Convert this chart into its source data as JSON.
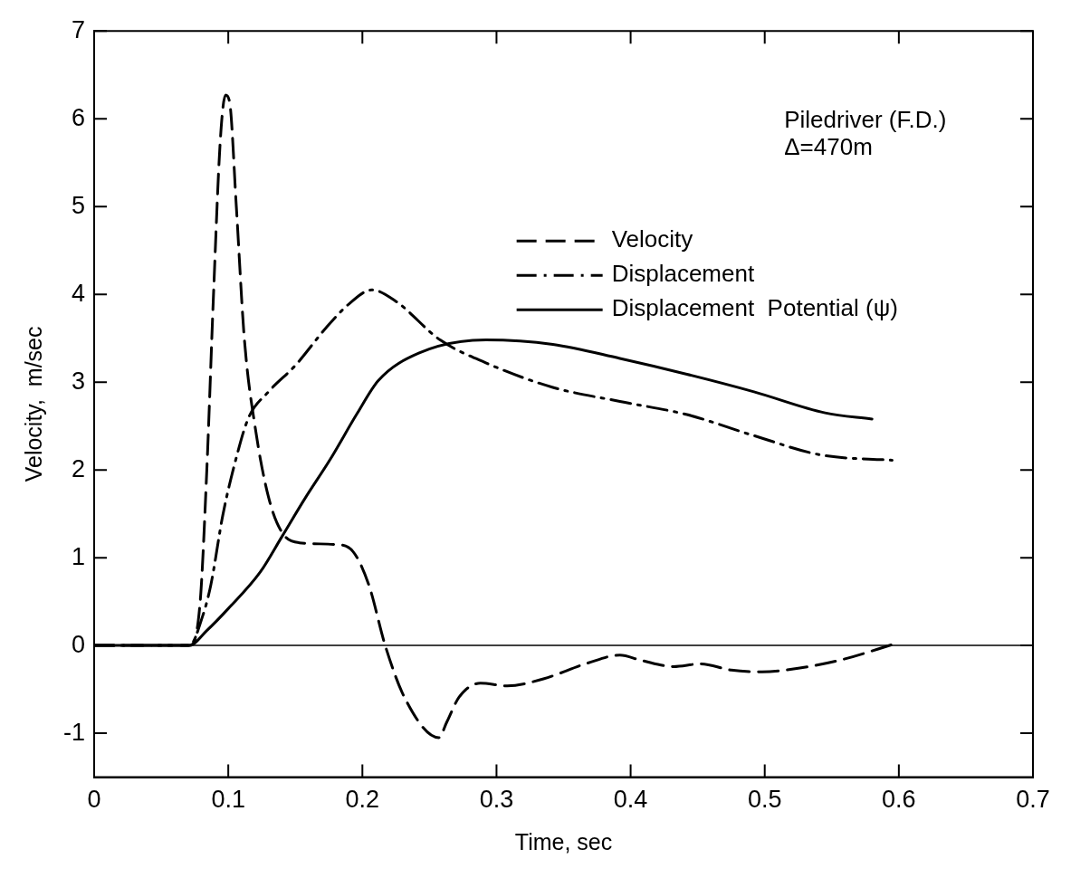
{
  "chart_data": {
    "type": "line",
    "xlabel": "Time, sec",
    "ylabel": "Velocity,  m/sec",
    "annotations": [
      "Piledriver (F.D.)",
      "Δ=470m"
    ],
    "xlim": [
      0,
      0.7
    ],
    "xticks": [
      0,
      0.1,
      0.2,
      0.3,
      0.4,
      0.5,
      0.6,
      0.7
    ],
    "ylim": [
      -1.5,
      7
    ],
    "yticks": [
      -1,
      0,
      1,
      2,
      3,
      4,
      5,
      6,
      7
    ],
    "grid": false,
    "legend": "top right",
    "marker": "none",
    "ref_lines": [
      {
        "axis": "y",
        "value": 0,
        "color": "#000000",
        "line_style": "solid"
      }
    ],
    "series": [
      {
        "name": "Velocity",
        "color": "#000000",
        "line_style": "dashed",
        "x": [
          0,
          0.071,
          0.079,
          0.084,
          0.089,
          0.094,
          0.098,
          0.101,
          0.106,
          0.112,
          0.12,
          0.13,
          0.14,
          0.153,
          0.18,
          0.193,
          0.205,
          0.217,
          0.232,
          0.257,
          0.263,
          0.272,
          0.288,
          0.308,
          0.335,
          0.368,
          0.392,
          0.408,
          0.432,
          0.452,
          0.475,
          0.498,
          0.525,
          0.558,
          0.597
        ],
        "values": [
          0,
          0,
          0.49,
          2.0,
          4.0,
          5.74,
          6.27,
          6.19,
          5.0,
          3.49,
          2.49,
          1.69,
          1.29,
          1.17,
          1.15,
          1.07,
          0.68,
          0,
          -0.61,
          -1.05,
          -0.87,
          -0.59,
          -0.43,
          -0.46,
          -0.38,
          -0.2,
          -0.11,
          -0.17,
          -0.24,
          -0.21,
          -0.28,
          -0.3,
          -0.26,
          -0.16,
          0.02
        ]
      },
      {
        "name": "Displacement",
        "color": "#000000",
        "line_style": "dashdot",
        "x": [
          0,
          0.071,
          0.081,
          0.087,
          0.096,
          0.106,
          0.115,
          0.13,
          0.15,
          0.173,
          0.19,
          0.207,
          0.225,
          0.258,
          0.292,
          0.342,
          0.392,
          0.442,
          0.492,
          0.542,
          0.595
        ],
        "values": [
          0,
          0,
          0.34,
          0.69,
          1.49,
          2.14,
          2.59,
          2.89,
          3.19,
          3.62,
          3.89,
          4.05,
          3.92,
          3.48,
          3.22,
          2.94,
          2.78,
          2.63,
          2.39,
          2.17,
          2.11
        ]
      },
      {
        "name": "Displacement  Potential (ψ)",
        "color": "#000000",
        "line_style": "solid",
        "x": [
          0,
          0.071,
          0.084,
          0.1,
          0.124,
          0.14,
          0.157,
          0.176,
          0.196,
          0.212,
          0.242,
          0.292,
          0.342,
          0.392,
          0.442,
          0.492,
          0.545,
          0.58
        ],
        "values": [
          0,
          0,
          0.17,
          0.42,
          0.84,
          1.24,
          1.67,
          2.12,
          2.64,
          3.02,
          3.33,
          3.48,
          3.43,
          3.27,
          3.09,
          2.89,
          2.65,
          2.58
        ]
      }
    ]
  }
}
